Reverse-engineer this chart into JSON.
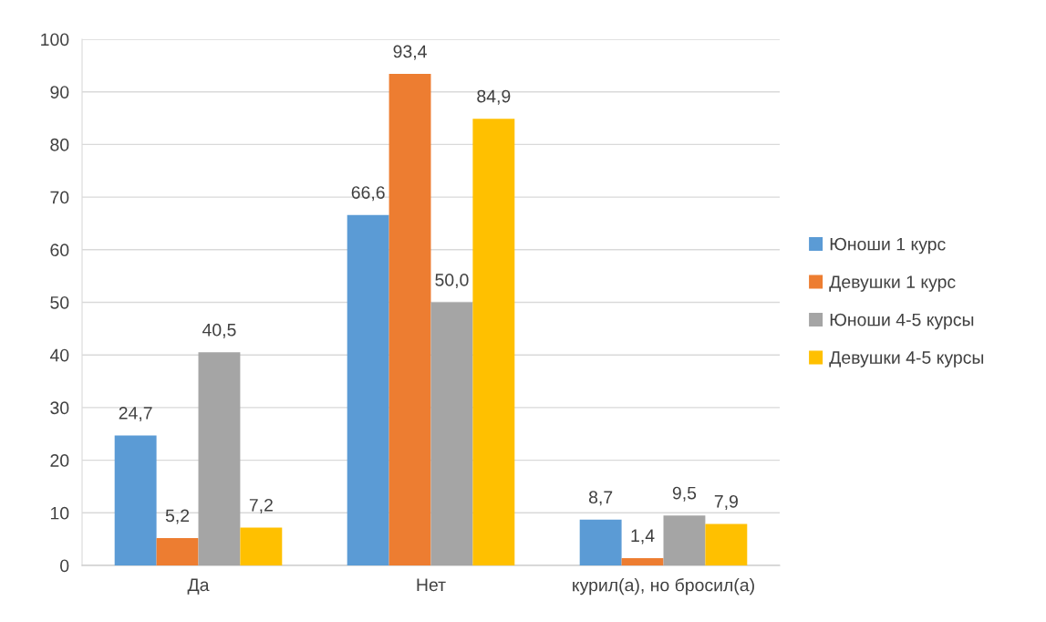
{
  "chart_data": {
    "type": "bar",
    "categories": [
      "Да",
      "Нет",
      "курил(а), но бросил(а)"
    ],
    "series": [
      {
        "name": "Юноши 1 курс",
        "color": "#5b9bd5",
        "values": [
          24.7,
          66.6,
          8.7
        ],
        "value_labels": [
          "24,7",
          "66,6",
          "8,7"
        ]
      },
      {
        "name": "Девушки 1 курс",
        "color": "#ed7d31",
        "values": [
          5.2,
          93.4,
          1.4
        ],
        "value_labels": [
          "5,2",
          "93,4",
          "1,4"
        ]
      },
      {
        "name": "Юноши 4-5 курсы",
        "color": "#a5a5a5",
        "values": [
          40.5,
          50.0,
          9.5
        ],
        "value_labels": [
          "40,5",
          "50,0",
          "9,5"
        ]
      },
      {
        "name": "Девушки 4-5 курсы",
        "color": "#ffc000",
        "values": [
          7.2,
          84.9,
          7.9
        ],
        "value_labels": [
          "7,2",
          "84,9",
          "7,9"
        ]
      }
    ],
    "ylim": [
      0,
      100
    ],
    "yticks": [
      0,
      10,
      20,
      30,
      40,
      50,
      60,
      70,
      80,
      90,
      100
    ],
    "grid": "y",
    "legend": "right"
  }
}
